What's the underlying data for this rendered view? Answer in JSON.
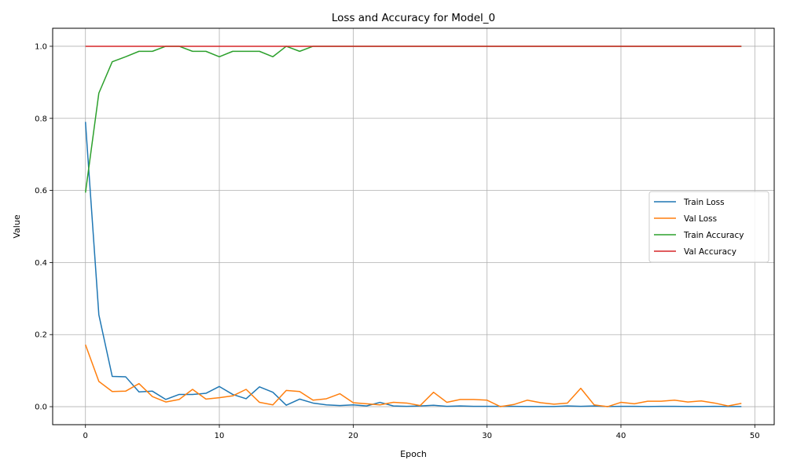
{
  "chart_data": {
    "type": "line",
    "title": "Loss and Accuracy for Model_0",
    "xlabel": "Epoch",
    "ylabel": "Value",
    "xlim": [
      -2.45,
      51.45
    ],
    "ylim": [
      -0.05,
      1.05
    ],
    "xticks": [
      0,
      10,
      20,
      30,
      40,
      50
    ],
    "yticks": [
      0.0,
      0.2,
      0.4,
      0.6,
      0.8,
      1.0
    ],
    "xtick_labels": [
      "0",
      "10",
      "20",
      "30",
      "40",
      "50"
    ],
    "ytick_labels": [
      "0.0",
      "0.2",
      "0.4",
      "0.6",
      "0.8",
      "1.0"
    ],
    "grid": true,
    "legend_position": "center-right",
    "x": [
      0,
      1,
      2,
      3,
      4,
      5,
      6,
      7,
      8,
      9,
      10,
      11,
      12,
      13,
      14,
      15,
      16,
      17,
      18,
      19,
      20,
      21,
      22,
      23,
      24,
      25,
      26,
      27,
      28,
      29,
      30,
      31,
      32,
      33,
      34,
      35,
      36,
      37,
      38,
      39,
      40,
      41,
      42,
      43,
      44,
      45,
      46,
      47,
      48,
      49
    ],
    "series": [
      {
        "name": "Train Loss",
        "color": "#1f77b4",
        "values": [
          0.79,
          0.255,
          0.084,
          0.083,
          0.041,
          0.043,
          0.02,
          0.034,
          0.034,
          0.037,
          0.056,
          0.034,
          0.022,
          0.055,
          0.04,
          0.004,
          0.021,
          0.01,
          0.005,
          0.003,
          0.005,
          0.002,
          0.012,
          0.002,
          0.001,
          0.002,
          0.004,
          0.001,
          0.002,
          0.001,
          0.001,
          0.001,
          0.001,
          0.0005,
          0.0005,
          0.0005,
          0.002,
          0.001,
          0.002,
          0.0005,
          0.001,
          0.001,
          0.0005,
          0.001,
          0.001,
          0.0005,
          0.0005,
          0.001,
          0.0005,
          0.0005
        ]
      },
      {
        "name": "Val Loss",
        "color": "#ff7f0e",
        "values": [
          0.172,
          0.07,
          0.042,
          0.043,
          0.064,
          0.028,
          0.013,
          0.02,
          0.048,
          0.021,
          0.025,
          0.03,
          0.048,
          0.012,
          0.005,
          0.045,
          0.042,
          0.018,
          0.022,
          0.036,
          0.011,
          0.008,
          0.005,
          0.012,
          0.01,
          0.003,
          0.04,
          0.012,
          0.02,
          0.02,
          0.018,
          0.0,
          0.006,
          0.018,
          0.011,
          0.007,
          0.01,
          0.051,
          0.005,
          0.0,
          0.012,
          0.008,
          0.015,
          0.015,
          0.018,
          0.013,
          0.016,
          0.01,
          0.002,
          0.009
        ]
      },
      {
        "name": "Train Accuracy",
        "color": "#2ca02c",
        "values": [
          0.594,
          0.87,
          0.957,
          0.971,
          0.986,
          0.986,
          1.0,
          1.0,
          0.986,
          0.986,
          0.971,
          0.986,
          0.986,
          0.986,
          0.971,
          1.0,
          0.986,
          1.0,
          1.0,
          1.0,
          1.0,
          1.0,
          1.0,
          1.0,
          1.0,
          1.0,
          1.0,
          1.0,
          1.0,
          1.0,
          1.0,
          1.0,
          1.0,
          1.0,
          1.0,
          1.0,
          1.0,
          1.0,
          1.0,
          1.0,
          1.0,
          1.0,
          1.0,
          1.0,
          1.0,
          1.0,
          1.0,
          1.0,
          1.0,
          1.0
        ]
      },
      {
        "name": "Val Accuracy",
        "color": "#d62728",
        "values": [
          1.0,
          1.0,
          1.0,
          1.0,
          1.0,
          1.0,
          1.0,
          1.0,
          1.0,
          1.0,
          1.0,
          1.0,
          1.0,
          1.0,
          1.0,
          1.0,
          1.0,
          1.0,
          1.0,
          1.0,
          1.0,
          1.0,
          1.0,
          1.0,
          1.0,
          1.0,
          1.0,
          1.0,
          1.0,
          1.0,
          1.0,
          1.0,
          1.0,
          1.0,
          1.0,
          1.0,
          1.0,
          1.0,
          1.0,
          1.0,
          1.0,
          1.0,
          1.0,
          1.0,
          1.0,
          1.0,
          1.0,
          1.0,
          1.0,
          1.0
        ]
      }
    ]
  }
}
